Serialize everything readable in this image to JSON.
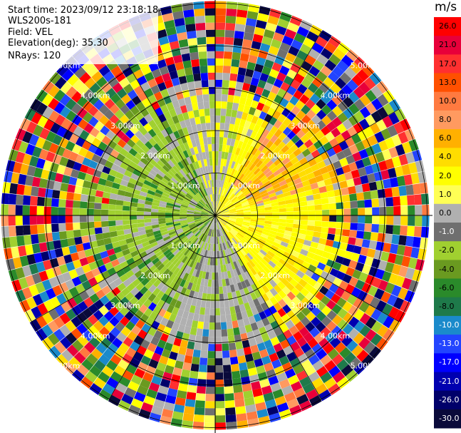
{
  "header": {
    "start_time": "Start time: 2023/09/12 23:18:18",
    "station": "WLS200s-181",
    "field": "Field: VEL",
    "elevation": "Elevation(deg): 35.30",
    "nrays": "NRays: 120"
  },
  "chart_data": {
    "type": "heatmap",
    "projection": "polar-ppi",
    "field": "VEL",
    "nrays": 120,
    "ring_labels": [
      "1.00km",
      "2.00km",
      "3.00km",
      "4.00km",
      "5.00km"
    ],
    "ring_label_angles_deg": [
      -45,
      45,
      135,
      -135
    ],
    "colorbar": {
      "unit": "m/s",
      "ticks": [
        "26.0",
        "21.0",
        "17.0",
        "13.0",
        "10.0",
        "8.0",
        "6.0",
        "4.0",
        "2.0",
        "1.0",
        "0.0",
        "-1.0",
        "-2.0",
        "-4.0",
        "-6.0",
        "-8.0",
        "-10.0",
        "-13.0",
        "-17.0",
        "-21.0",
        "-26.0",
        "-30.0"
      ],
      "colors": [
        "#ff0000",
        "#e8003a",
        "#ff3030",
        "#ff5000",
        "#ff7a40",
        "#ff9a60",
        "#ffb000",
        "#ffdd00",
        "#ffff00",
        "#ffff55",
        "#b0b0b0",
        "#6f6f6f",
        "#a0d030",
        "#6a9a20",
        "#2a8a2a",
        "#1e7a4a",
        "#1a8acb",
        "#2244ff",
        "#0000ff",
        "#0000b0",
        "#00006a",
        "#0a0a3a"
      ]
    }
  }
}
